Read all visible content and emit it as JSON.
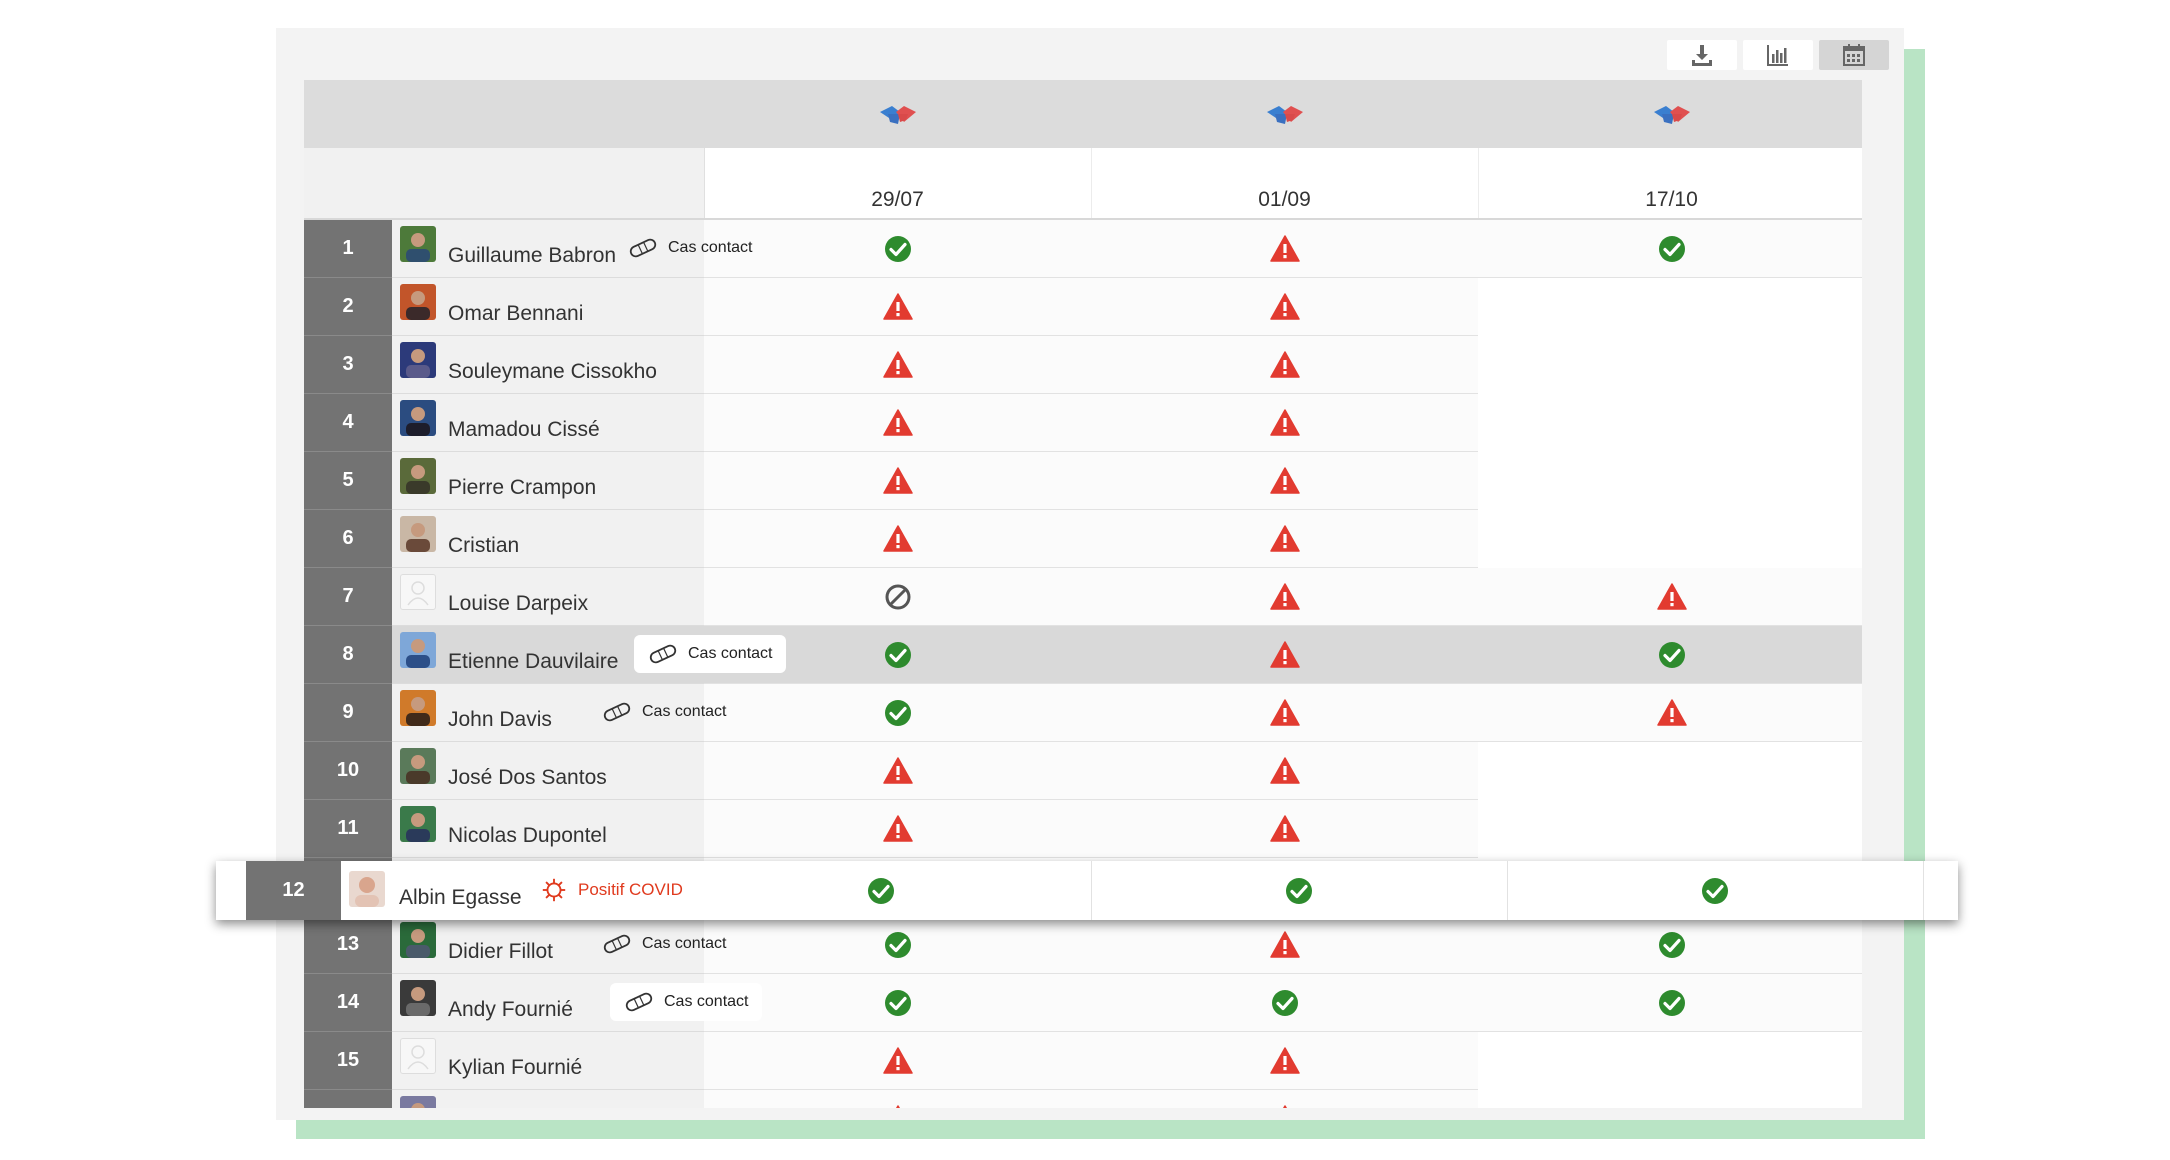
{
  "toolbar": {
    "buttons": [
      {
        "name": "download-icon",
        "active": false
      },
      {
        "name": "bar-chart-icon",
        "active": false
      },
      {
        "name": "calendar-icon",
        "active": true
      }
    ]
  },
  "columns": [
    {
      "date": "29/07",
      "icon": "handshake-icon"
    },
    {
      "date": "01/09",
      "icon": "handshake-icon"
    },
    {
      "date": "17/10",
      "icon": "handshake-icon"
    }
  ],
  "status_legend": {
    "ok": "check-circle-icon",
    "warn": "warning-triangle-icon",
    "no": "forbidden-icon",
    "none": ""
  },
  "colors": {
    "ok": "#2e8b2e",
    "warn": "#e23b30",
    "covid": "#e03a1e",
    "number_bg": "#737373"
  },
  "players": [
    {
      "num": "1",
      "name": "Guillaume Babron",
      "avatar": "photo",
      "tag": "Cas contact",
      "tag_style": "plain",
      "status": [
        "ok",
        "warn",
        "ok"
      ]
    },
    {
      "num": "2",
      "name": "Omar Bennani",
      "avatar": "photo",
      "tag": "",
      "status": [
        "warn",
        "warn",
        "none"
      ]
    },
    {
      "num": "3",
      "name": "Souleymane Cissokho",
      "avatar": "photo",
      "tag": "",
      "status": [
        "warn",
        "warn",
        "none"
      ]
    },
    {
      "num": "4",
      "name": "Mamadou Cissé",
      "avatar": "photo",
      "tag": "",
      "status": [
        "warn",
        "warn",
        "none"
      ]
    },
    {
      "num": "5",
      "name": "Pierre Crampon",
      "avatar": "photo",
      "tag": "",
      "status": [
        "warn",
        "warn",
        "none"
      ]
    },
    {
      "num": "6",
      "name": "Cristian",
      "avatar": "photo",
      "tag": "",
      "status": [
        "warn",
        "warn",
        "none"
      ]
    },
    {
      "num": "7",
      "name": "Louise Darpeix",
      "avatar": "blank",
      "tag": "",
      "status": [
        "no",
        "warn",
        "warn"
      ]
    },
    {
      "num": "8",
      "name": "Etienne Dauvilaire",
      "avatar": "photo",
      "tag": "Cas contact",
      "tag_style": "box",
      "highlight": true,
      "status": [
        "ok",
        "warn",
        "ok"
      ]
    },
    {
      "num": "9",
      "name": "John Davis",
      "avatar": "photo",
      "tag": "Cas contact",
      "tag_style": "plain",
      "status": [
        "ok",
        "warn",
        "warn"
      ]
    },
    {
      "num": "10",
      "name": "José Dos Santos",
      "avatar": "photo",
      "tag": "",
      "status": [
        "warn",
        "warn",
        "none"
      ]
    },
    {
      "num": "11",
      "name": "Nicolas Dupontel",
      "avatar": "photo",
      "tag": "",
      "status": [
        "warn",
        "warn",
        "none"
      ]
    },
    {
      "num": "12",
      "name": "Albin Egasse",
      "avatar": "photo",
      "tag": "",
      "status": [
        "none",
        "none",
        "none"
      ],
      "placeholder": true
    },
    {
      "num": "13",
      "name": "Didier Fillot",
      "avatar": "photo",
      "tag": "Cas contact",
      "tag_style": "plain",
      "status": [
        "ok",
        "warn",
        "ok"
      ]
    },
    {
      "num": "14",
      "name": "Andy Fournié",
      "avatar": "photo",
      "tag": "Cas contact",
      "tag_style": "box",
      "status": [
        "ok",
        "ok",
        "ok"
      ]
    },
    {
      "num": "15",
      "name": "Kylian Fournié",
      "avatar": "blank",
      "tag": "",
      "status": [
        "warn",
        "warn",
        "none"
      ]
    },
    {
      "num": "",
      "name": "",
      "avatar": "photo",
      "tag": "",
      "status": [
        "warn",
        "warn",
        "none"
      ]
    }
  ],
  "dragged_row": {
    "num": "12",
    "name": "Albin Egasse",
    "tag": "Positif COVID",
    "status": [
      "ok",
      "ok",
      "ok"
    ]
  }
}
